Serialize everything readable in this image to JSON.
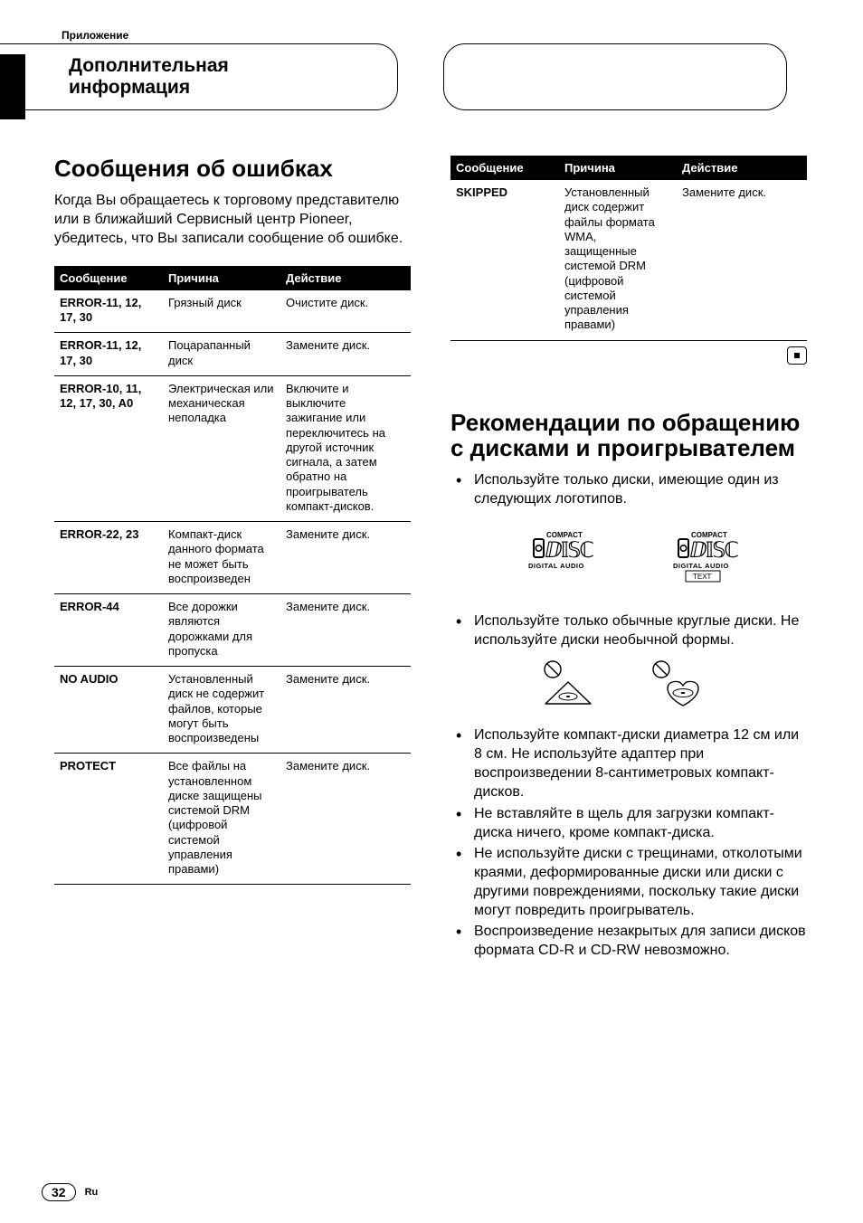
{
  "appendix_label": "Приложение",
  "section_header": "Дополнительная\nинформация",
  "left": {
    "title": "Сообщения об ошибках",
    "intro": "Когда Вы обращаетесь к торговому представителю или в ближайший Сервисный центр Pioneer, убедитесь, что Вы записали сообщение об ошибке.",
    "table": {
      "headers": [
        "Сообщение",
        "Причина",
        "Действие"
      ],
      "rows": [
        {
          "msg": "ERROR-11, 12, 17, 30",
          "cause": "Грязный диск",
          "action": "Очистите диск."
        },
        {
          "msg": "ERROR-11, 12, 17, 30",
          "cause": "Поцарапанный диск",
          "action": "Замените диск."
        },
        {
          "msg": "ERROR-10, 11, 12, 17, 30, A0",
          "cause": "Электрическая или механическая неполадка",
          "action": "Включите и выключите зажигание или переключитесь на другой источник сигнала, а затем обратно на проигрыватель компакт-дисков."
        },
        {
          "msg": "ERROR-22, 23",
          "cause": "Компакт-диск данного формата не может быть воспроизведен",
          "action": "Замените диск."
        },
        {
          "msg": "ERROR-44",
          "cause": "Все дорожки являются дорожками для пропуска",
          "action": "Замените диск."
        },
        {
          "msg": "NO AUDIO",
          "cause": "Установленный диск не содержит файлов, которые могут быть воспроизведены",
          "action": "Замените диск."
        },
        {
          "msg": "PROTECT",
          "cause": "Все файлы на установленном диске защищены системой DRM (цифровой системой управления правами)",
          "action": "Замените диск."
        }
      ]
    }
  },
  "right": {
    "table": {
      "headers": [
        "Сообщение",
        "Причина",
        "Действие"
      ],
      "rows": [
        {
          "msg": "SKIPPED",
          "cause": "Установленный диск содержит файлы формата WMA, защищенные системой DRM (цифровой системой управления правами)",
          "action": "Замените диск."
        }
      ]
    },
    "title": "Рекомендации по обращению с дисками и проигрывателем",
    "bullets_top": [
      "Используйте только диски, имеющие один из следующих логотипов."
    ],
    "logo1": {
      "top": "COMPACT",
      "mid_glyph": "disc",
      "bottom": "DIGITAL AUDIO"
    },
    "logo2": {
      "top": "COMPACT",
      "mid_glyph": "disc",
      "bottom": "DIGITAL AUDIO",
      "sub": "TEXT"
    },
    "bullets_mid": [
      "Используйте только обычные круглые диски. Не используйте диски необычной формы."
    ],
    "bullets_bottom": [
      "Используйте компакт-диски диаметра 12 см или 8 см. Не используйте адаптер при воспроизведении 8-сантиметровых компакт-дисков.",
      "Не вставляйте в щель для загрузки компакт-диска ничего, кроме компакт-диска.",
      "Не используйте диски с трещинами, отколотыми краями, деформированные диски или диски с другими повреждениями, поскольку такие диски могут повредить проигрыватель.",
      "Воспроизведение незакрытых для записи дисков формата CD-R и CD-RW невозможно."
    ]
  },
  "page_number": "32",
  "lang": "Ru"
}
